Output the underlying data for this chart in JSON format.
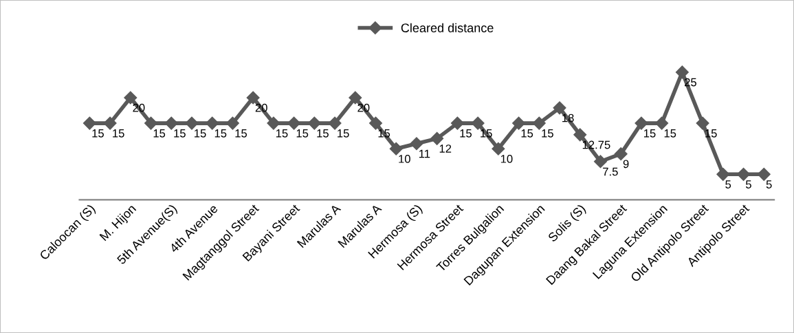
{
  "chart_data": {
    "type": "line",
    "categories": [
      "Caloocan (S)",
      null,
      "M. Hijon",
      null,
      "5th Avenue(S)",
      null,
      "4th Avenue",
      null,
      "Magtanggol Street",
      null,
      "Bayani Street",
      null,
      "Marulas A",
      null,
      "Marulas A",
      null,
      "Hermosa (S)",
      null,
      "Hermosa Street",
      null,
      "Torres Bulgalion",
      null,
      "Dagupan Extension",
      null,
      "Solis (S)",
      null,
      "Daang Bakal Street",
      null,
      "Laguna Extension",
      null,
      "Old Antipolo Street",
      null,
      "Antipolo Street",
      null
    ],
    "series": [
      {
        "name": "Cleared distance",
        "color": "#595959",
        "values": [
          15,
          15,
          20,
          15,
          15,
          15,
          15,
          15,
          20,
          15,
          15,
          15,
          15,
          20,
          15,
          10,
          11,
          12,
          15,
          15,
          10,
          15,
          15,
          18,
          12.75,
          7.5,
          9,
          15,
          15,
          25,
          15,
          5,
          5,
          5
        ]
      }
    ],
    "tick_labels": "x",
    "data_labels": true,
    "legend": "top",
    "marker": "diamond",
    "line_style": "solid",
    "grid": false
  }
}
